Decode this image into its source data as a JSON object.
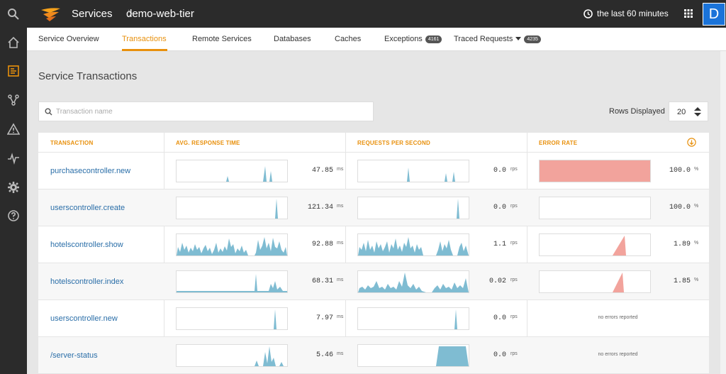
{
  "breadcrumb": {
    "section": "Services",
    "service": "demo-web-tier"
  },
  "time_range": "the last 60 minutes",
  "avatar_initial": "D",
  "tabs": [
    {
      "label": "Service Overview"
    },
    {
      "label": "Transactions"
    },
    {
      "label": "Remote Services"
    },
    {
      "label": "Databases"
    },
    {
      "label": "Caches"
    },
    {
      "label": "Exceptions",
      "badge": "4161"
    },
    {
      "label": "Traced Requests",
      "badge": "4235"
    }
  ],
  "page_title": "Service Transactions",
  "search": {
    "placeholder": "Transaction name",
    "value": ""
  },
  "rows_displayed": {
    "label": "Rows Displayed",
    "value": "20"
  },
  "columns": [
    "TRANSACTION",
    "AVG. RESPONSE TIME",
    "REQUESTS PER SECOND",
    "ERROR RATE"
  ],
  "colors": {
    "accent": "#e8900c",
    "link": "#2a6ea8",
    "sparkline": "#7fbcd2",
    "error_bar": "#f2a39c"
  },
  "transactions": [
    {
      "name": "purchasecontroller.new",
      "avg_response": "47.85",
      "avg_unit": "ms",
      "rps": "0.0",
      "rps_unit": "rps",
      "error_rate": "100.0",
      "error_unit": "%"
    },
    {
      "name": "userscontroller.create",
      "avg_response": "121.34",
      "avg_unit": "ms",
      "rps": "0.0",
      "rps_unit": "rps",
      "error_rate": "100.0",
      "error_unit": "%"
    },
    {
      "name": "hotelscontroller.show",
      "avg_response": "92.88",
      "avg_unit": "ms",
      "rps": "1.1",
      "rps_unit": "rps",
      "error_rate": "1.89",
      "error_unit": "%"
    },
    {
      "name": "hotelscontroller.index",
      "avg_response": "68.31",
      "avg_unit": "ms",
      "rps": "0.02",
      "rps_unit": "rps",
      "error_rate": "1.85",
      "error_unit": "%"
    },
    {
      "name": "userscontroller.new",
      "avg_response": "7.97",
      "avg_unit": "ms",
      "rps": "0.0",
      "rps_unit": "rps",
      "error_text": "no errors reported"
    },
    {
      "name": "/server-status",
      "avg_response": "5.46",
      "avg_unit": "ms",
      "rps": "0.0",
      "rps_unit": "rps",
      "error_text": "no errors reported"
    }
  ]
}
